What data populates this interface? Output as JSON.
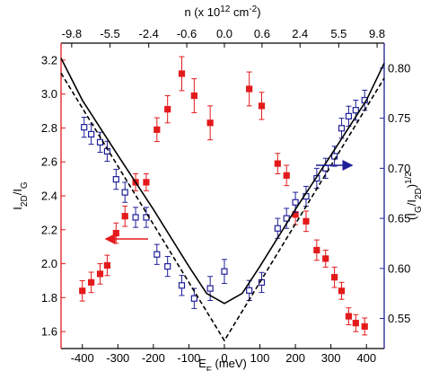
{
  "chart_data": {
    "type": "scatter",
    "xlabel": [
      {
        "text": "E"
      },
      {
        "text": "F",
        "shift": "sub"
      },
      {
        "text": " (meV)"
      }
    ],
    "ylabel": [
      {
        "text": "I"
      },
      {
        "text": "2D",
        "shift": "sub"
      },
      {
        "text": "/I"
      },
      {
        "text": "G",
        "shift": "sub"
      }
    ],
    "y2label": [
      {
        "text": "(I"
      },
      {
        "text": "G",
        "shift": "sub"
      },
      {
        "text": "/I"
      },
      {
        "text": "2D",
        "shift": "sub"
      },
      {
        "text": ")"
      },
      {
        "text": "1/2",
        "shift": "super"
      }
    ],
    "x2label": [
      {
        "text": "n (x 10"
      },
      {
        "text": "12",
        "shift": "super"
      },
      {
        "text": " cm"
      },
      {
        "text": "-2",
        "shift": "super"
      },
      {
        "text": ")"
      }
    ],
    "xlim": [
      -460,
      450
    ],
    "xticks": [
      -400,
      -300,
      -200,
      -100,
      0,
      100,
      200,
      300,
      400
    ],
    "x2ticks": [
      {
        "value": -430,
        "label": "-9.8"
      },
      {
        "value": -322,
        "label": "-5.5"
      },
      {
        "value": -213,
        "label": "-2.4"
      },
      {
        "value": -106,
        "label": "-0.6"
      },
      {
        "value": 0,
        "label": "0.0"
      },
      {
        "value": 106,
        "label": "0.6"
      },
      {
        "value": 213,
        "label": "2.4"
      },
      {
        "value": 322,
        "label": "5.5"
      },
      {
        "value": 430,
        "label": "9.8"
      }
    ],
    "ylim": [
      1.5,
      3.3
    ],
    "yticks": [
      1.6,
      1.8,
      {
        "value": 2,
        "label": "2.0"
      },
      2.2,
      2.4,
      2.6,
      2.8,
      {
        "value": 3,
        "label": "3.0"
      },
      3.2
    ],
    "y2lim": [
      0.52,
      0.825
    ],
    "y2ticks": [
      0.55,
      {
        "value": 0.6,
        "label": "0.60"
      },
      0.65,
      {
        "value": 0.7,
        "label": "0.70"
      },
      0.75,
      {
        "value": 0.8,
        "label": "0.80"
      }
    ],
    "ycolor": "#e31a1c",
    "y2color": "#1f1f99",
    "series": [
      {
        "color": "#e31a1c",
        "marker": "filled-square",
        "axis": "y",
        "x": [
          -400,
          -375,
          -350,
          -330,
          -305,
          -280,
          -250,
          -220,
          -190,
          -160,
          -120,
          -85,
          -40,
          70,
          105,
          150,
          175,
          200,
          230,
          260,
          285,
          310,
          330,
          350,
          370,
          395
        ],
        "values": [
          1.84,
          1.89,
          1.94,
          1.99,
          2.18,
          2.28,
          2.48,
          2.48,
          2.79,
          2.91,
          3.12,
          2.99,
          2.83,
          3.03,
          2.93,
          2.59,
          2.52,
          2.29,
          2.25,
          2.08,
          2.03,
          1.92,
          1.84,
          1.69,
          1.65,
          1.63
        ],
        "errors": [
          0.06,
          0.06,
          0.06,
          0.06,
          0.06,
          0.06,
          0.05,
          0.05,
          0.07,
          0.08,
          0.1,
          0.1,
          0.1,
          0.1,
          0.08,
          0.06,
          0.06,
          0.06,
          0.06,
          0.06,
          0.05,
          0.06,
          0.05,
          0.05,
          0.05,
          0.05
        ]
      },
      {
        "color": "#1f1f99",
        "marker": "open-square",
        "axis": "y2",
        "x": [
          -395,
          -375,
          -350,
          -330,
          -305,
          -280,
          -250,
          -220,
          -190,
          -160,
          -120,
          -85,
          -40,
          0,
          70,
          105,
          150,
          175,
          200,
          230,
          260,
          285,
          310,
          330,
          350,
          370,
          395
        ],
        "values": [
          0.741,
          0.734,
          0.726,
          0.717,
          0.689,
          0.676,
          0.651,
          0.651,
          0.614,
          0.602,
          0.583,
          0.57,
          0.58,
          0.597,
          0.578,
          0.586,
          0.64,
          0.65,
          0.666,
          0.672,
          0.69,
          0.7,
          0.712,
          0.74,
          0.752,
          0.758,
          0.768
        ],
        "errors": [
          0.01,
          0.01,
          0.01,
          0.01,
          0.01,
          0.01,
          0.01,
          0.01,
          0.01,
          0.01,
          0.01,
          0.01,
          0.012,
          0.012,
          0.01,
          0.01,
          0.01,
          0.01,
          0.01,
          0.01,
          0.01,
          0.01,
          0.01,
          0.01,
          0.01,
          0.01,
          0.01
        ]
      },
      {
        "color": "#000000",
        "line": "solid",
        "axis": "y2",
        "x": [
          -460,
          -400,
          -300,
          -200,
          -100,
          -50,
          0,
          50,
          100,
          200,
          300,
          400,
          450
        ],
        "values": [
          0.81,
          0.768,
          0.713,
          0.659,
          0.602,
          0.575,
          0.565,
          0.575,
          0.602,
          0.659,
          0.713,
          0.768,
          0.805
        ]
      },
      {
        "color": "#000000",
        "line": "dashed",
        "axis": "y2",
        "x": [
          -460,
          0,
          450
        ],
        "values": [
          0.795,
          0.528,
          0.79
        ]
      }
    ]
  }
}
